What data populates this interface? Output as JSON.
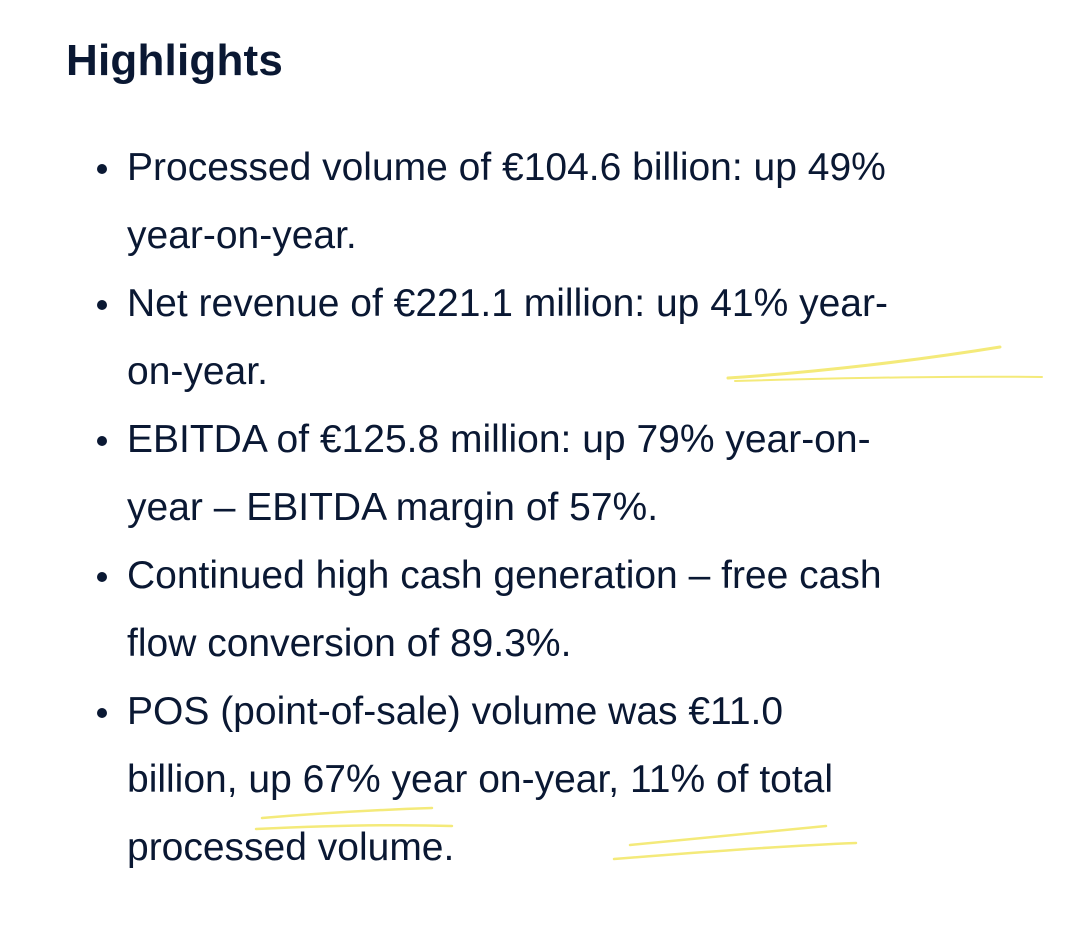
{
  "section": {
    "title": "Highlights"
  },
  "highlights": [
    {
      "line1": "Processed volume of €104.6 billion: up 49%",
      "line2": "year-on-year."
    },
    {
      "line1": "Net revenue of €221.1 million: up 41% year-",
      "line2": "on-year."
    },
    {
      "line1": "EBITDA of €125.8 million: up 79% year-on-",
      "line2": "year – EBITDA margin of 57%."
    },
    {
      "line1": "Continued high cash generation – free cash",
      "line2": "flow conversion of 89.3%."
    },
    {
      "line1": "POS (point-of-sale) volume was €11.0",
      "line2": "billion, up 67% year on-year, 11% of total",
      "line3": "processed volume."
    }
  ],
  "colors": {
    "text": "#0a1833",
    "background": "#ffffff",
    "highlight_marker": "#f4ea7a"
  }
}
